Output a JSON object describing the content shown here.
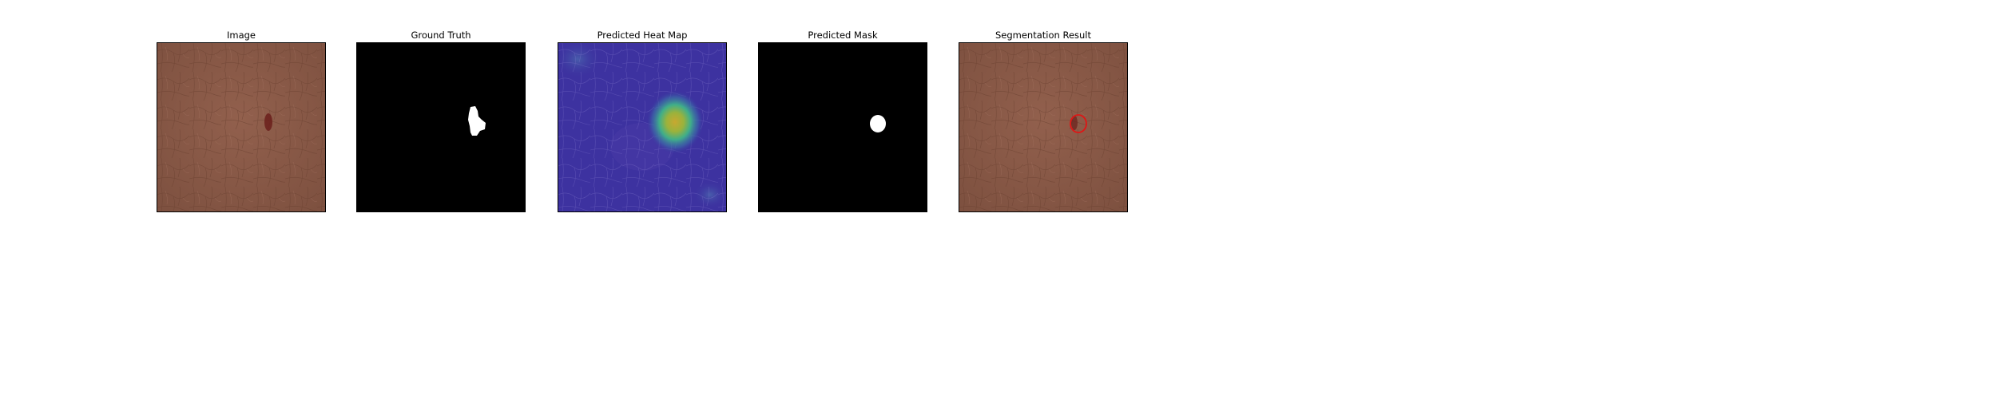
{
  "panels": [
    {
      "title": "Image"
    },
    {
      "title": "Ground Truth"
    },
    {
      "title": "Predicted Heat Map"
    },
    {
      "title": "Predicted Mask"
    },
    {
      "title": "Segmentation Result"
    }
  ],
  "colors": {
    "leather": "#8a5a48",
    "heatmap_base": "#3a2f9e",
    "heatmap_hot": "#c9b633",
    "mask": "#ffffff",
    "background": "#000000",
    "contour": "#e01515"
  }
}
